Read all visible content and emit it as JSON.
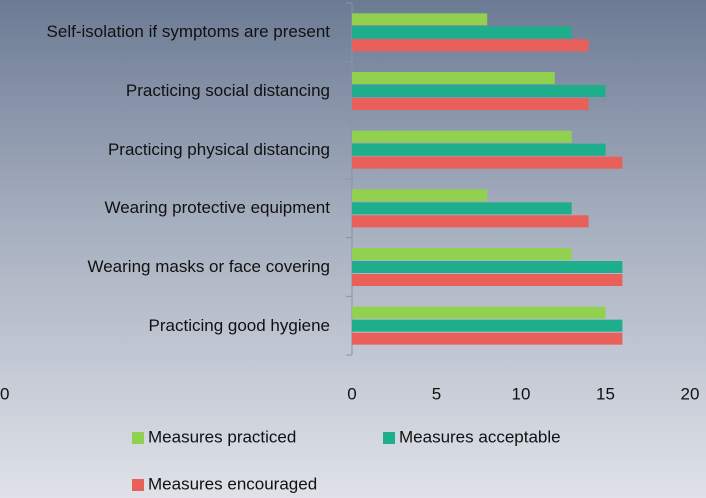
{
  "chart_data": {
    "type": "barh",
    "categories": [
      "Self-isolation if symptoms are present",
      "Practicing social distancing",
      "Practicing physical distancing",
      "Wearing protective equipment",
      "Wearing masks or face covering",
      "Practicing good hygiene"
    ],
    "series": [
      {
        "name": "Measures practiced",
        "color": "#92d050",
        "values": [
          8,
          12,
          13,
          8,
          13,
          15
        ]
      },
      {
        "name": "Measures acceptable",
        "color": "#1fae8c",
        "values": [
          13,
          15,
          15,
          13,
          16,
          16
        ]
      },
      {
        "name": "Measures encouraged",
        "color": "#e9605a",
        "values": [
          14,
          14,
          16,
          14,
          16,
          16
        ]
      }
    ],
    "xlim": [
      0,
      20
    ],
    "xticks": [
      0,
      5,
      10,
      15,
      20
    ],
    "annotation": "0"
  }
}
